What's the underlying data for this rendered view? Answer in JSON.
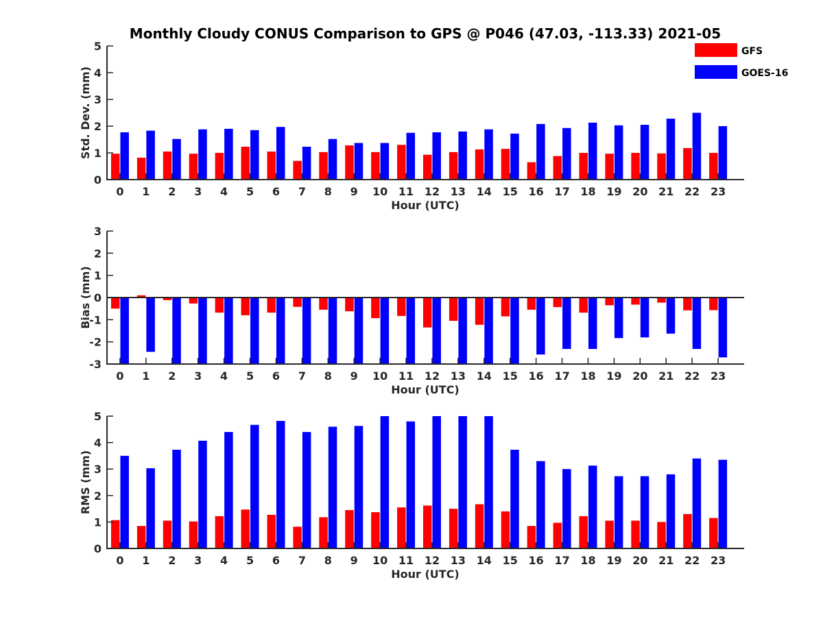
{
  "figure": {
    "title": "Monthly Cloudy CONUS Comparison to GPS @ P046 (47.03, -113.33) 2021-05"
  },
  "legend": {
    "placement": "top-right",
    "items": [
      {
        "name": "GFS",
        "color": "#ff0000"
      },
      {
        "name": "GOES-16",
        "color": "#0000ff"
      }
    ]
  },
  "chart_data": [
    {
      "type": "bar",
      "xlabel": "Hour (UTC)",
      "ylabel": "Std. Dev. (mm)",
      "ylim": [
        0,
        5
      ],
      "yticks": [
        0,
        1,
        2,
        3,
        4,
        5
      ],
      "categories": [
        "0",
        "1",
        "2",
        "3",
        "4",
        "5",
        "6",
        "7",
        "8",
        "9",
        "10",
        "11",
        "12",
        "13",
        "14",
        "15",
        "16",
        "17",
        "18",
        "19",
        "20",
        "21",
        "22",
        "23"
      ],
      "series": [
        {
          "name": "GFS",
          "color": "#ff0000",
          "values": [
            0.97,
            0.82,
            1.05,
            0.97,
            1.0,
            1.23,
            1.05,
            0.7,
            1.03,
            1.28,
            1.03,
            1.3,
            0.93,
            1.03,
            1.13,
            1.15,
            0.65,
            0.88,
            1.0,
            0.97,
            1.0,
            0.98,
            1.18,
            1.0
          ]
        },
        {
          "name": "GOES-16",
          "color": "#0000ff",
          "values": [
            1.77,
            1.83,
            1.52,
            1.88,
            1.9,
            1.85,
            1.97,
            1.23,
            1.52,
            1.37,
            1.37,
            1.75,
            1.77,
            1.8,
            1.88,
            1.72,
            2.08,
            1.93,
            2.13,
            2.03,
            2.05,
            2.28,
            2.5,
            2.0
          ]
        }
      ]
    },
    {
      "type": "bar",
      "xlabel": "Hour (UTC)",
      "ylabel": "Bias (mm)",
      "ylim": [
        -3,
        3
      ],
      "yticks": [
        -3,
        -2,
        -1,
        0,
        1,
        2,
        3
      ],
      "zero_line": true,
      "categories": [
        "0",
        "1",
        "2",
        "3",
        "4",
        "5",
        "6",
        "7",
        "8",
        "9",
        "10",
        "11",
        "12",
        "13",
        "14",
        "15",
        "16",
        "17",
        "18",
        "19",
        "20",
        "21",
        "22",
        "23"
      ],
      "series": [
        {
          "name": "GFS",
          "color": "#ff0000",
          "values": [
            -0.5,
            0.1,
            -0.12,
            -0.27,
            -0.68,
            -0.8,
            -0.68,
            -0.42,
            -0.55,
            -0.62,
            -0.93,
            -0.83,
            -1.35,
            -1.05,
            -1.23,
            -0.85,
            -0.55,
            -0.43,
            -0.68,
            -0.35,
            -0.32,
            -0.23,
            -0.58,
            -0.57
          ]
        },
        {
          "name": "GOES-16",
          "color": "#0000ff",
          "values": [
            -3.0,
            -2.45,
            -3.0,
            -3.0,
            -3.0,
            -3.0,
            -3.0,
            -3.0,
            -3.0,
            -3.0,
            -3.0,
            -3.0,
            -3.0,
            -3.0,
            -3.0,
            -3.0,
            -2.57,
            -2.32,
            -2.32,
            -1.83,
            -1.8,
            -1.63,
            -2.32,
            -2.7
          ]
        }
      ]
    },
    {
      "type": "bar",
      "xlabel": "Hour (UTC)",
      "ylabel": "RMS (mm)",
      "ylim": [
        0,
        5
      ],
      "yticks": [
        0,
        1,
        2,
        3,
        4,
        5
      ],
      "categories": [
        "0",
        "1",
        "2",
        "3",
        "4",
        "5",
        "6",
        "7",
        "8",
        "9",
        "10",
        "11",
        "12",
        "13",
        "14",
        "15",
        "16",
        "17",
        "18",
        "19",
        "20",
        "21",
        "22",
        "23"
      ],
      "series": [
        {
          "name": "GFS",
          "color": "#ff0000",
          "values": [
            1.07,
            0.85,
            1.05,
            1.02,
            1.22,
            1.47,
            1.27,
            0.82,
            1.18,
            1.45,
            1.37,
            1.55,
            1.62,
            1.5,
            1.67,
            1.4,
            0.85,
            0.97,
            1.22,
            1.05,
            1.05,
            1.0,
            1.3,
            1.15
          ]
        },
        {
          "name": "GOES-16",
          "color": "#0000ff",
          "values": [
            3.5,
            3.03,
            3.73,
            4.07,
            4.4,
            4.67,
            4.82,
            4.4,
            4.6,
            4.63,
            5.0,
            4.8,
            5.0,
            5.0,
            5.0,
            3.73,
            3.3,
            3.0,
            3.13,
            2.73,
            2.73,
            2.8,
            3.4,
            3.35
          ]
        }
      ]
    }
  ]
}
